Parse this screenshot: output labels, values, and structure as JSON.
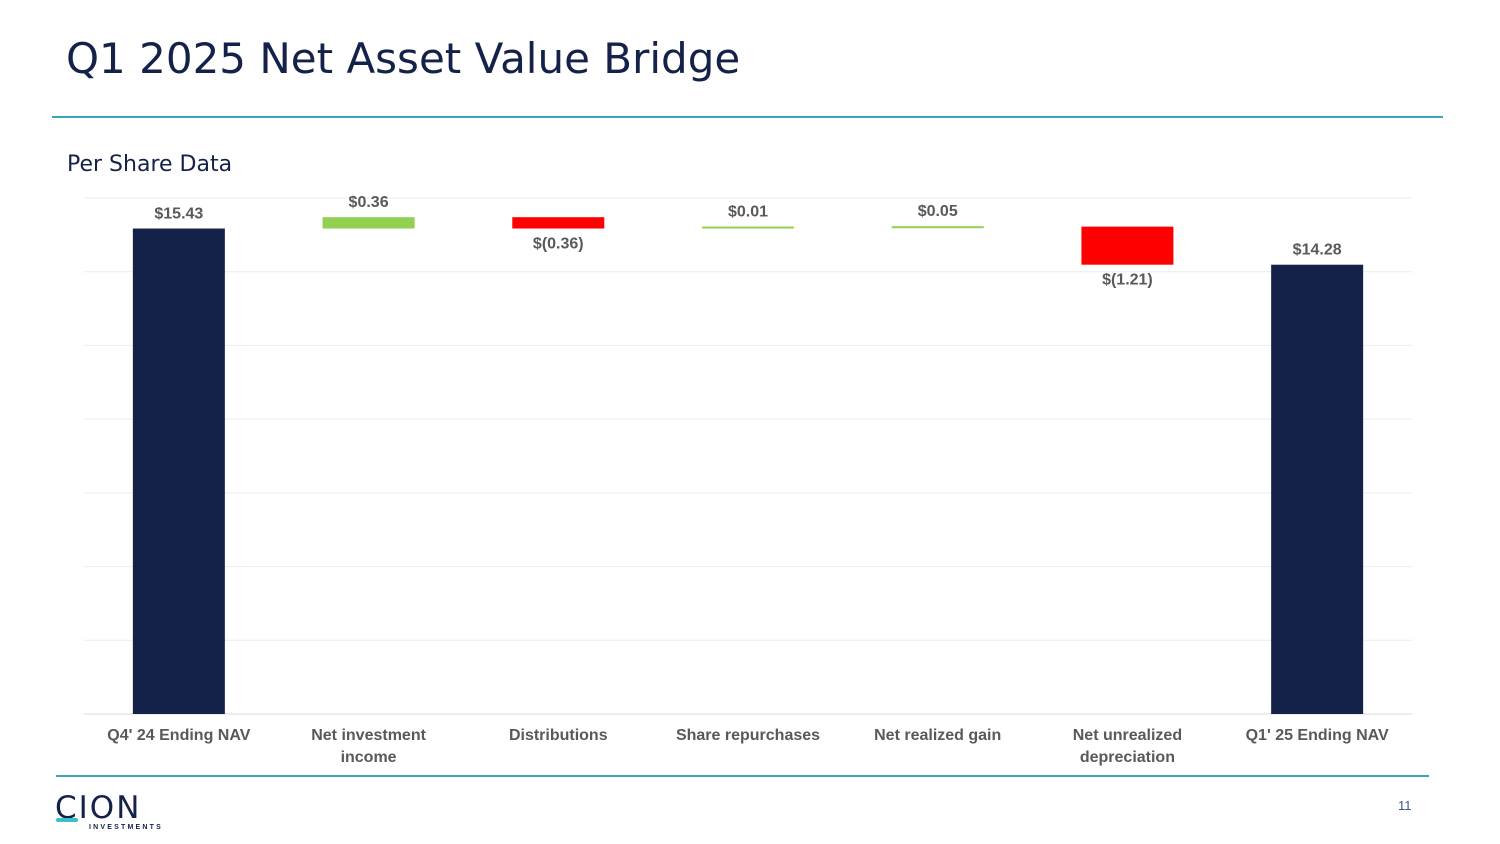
{
  "title": "Q1 2025 Net Asset Value Bridge",
  "subtitle": "Per Share Data",
  "page_number": "11",
  "logo": {
    "main": "CION",
    "sub": "INVESTMENTS"
  },
  "colors": {
    "total": "#14224a",
    "increase": "#92d050",
    "decrease": "#ff0000",
    "accent": "#3aa6b9"
  },
  "chart_data": {
    "type": "waterfall",
    "title": "Q1 2025 Net Asset Value Bridge",
    "subtitle": "Per Share Data",
    "ylim": [
      0,
      16.4
    ],
    "grid": true,
    "categories": [
      [
        "Q4' 24 Ending NAV"
      ],
      [
        "Net investment",
        "income"
      ],
      [
        "Distributions"
      ],
      [
        "Share repurchases"
      ],
      [
        "Net realized gain"
      ],
      [
        "Net unrealized",
        "depreciation"
      ],
      [
        "Q1' 25 Ending NAV"
      ]
    ],
    "values": [
      15.43,
      0.36,
      -0.36,
      0.01,
      0.05,
      -1.21,
      14.28
    ],
    "kinds": [
      "total",
      "increase",
      "decrease",
      "increase",
      "increase",
      "decrease",
      "total"
    ],
    "labels": [
      "$15.43",
      "$0.36",
      "$(0.36)",
      "$0.01",
      "$0.05",
      "$(1.21)",
      "$14.28"
    ]
  }
}
